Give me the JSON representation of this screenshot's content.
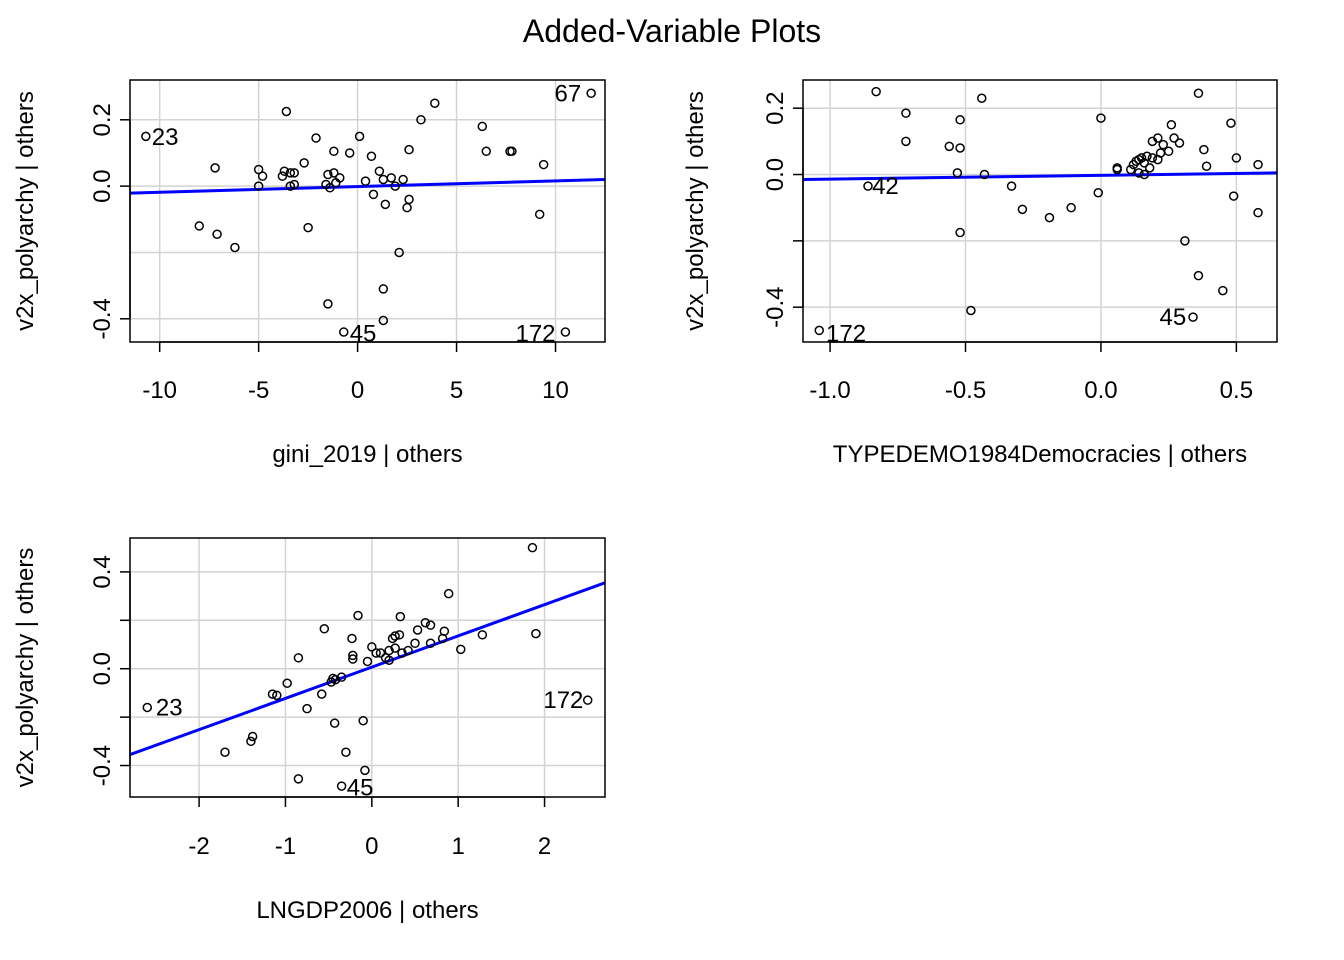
{
  "title": "Added-Variable Plots",
  "colors": {
    "line": "#0000ff",
    "grid": "#d3d3d3",
    "points": "#000000"
  },
  "chart_data": [
    {
      "type": "scatter",
      "xlabel": "gini_2019 | others",
      "ylabel": "v2x_polyarchy  | others",
      "xlim": [
        -11.5,
        12.5
      ],
      "ylim": [
        -0.47,
        0.32
      ],
      "xticks": [
        "-10",
        "-5",
        "0",
        "5",
        "10"
      ],
      "xtick_values": [
        -10,
        -5,
        0,
        5,
        10
      ],
      "yticks": [
        "-0.4",
        "0.0",
        "0.2"
      ],
      "ytick_values": [
        -0.4,
        0.0,
        0.2
      ],
      "xgrid": [
        -10,
        -5,
        0,
        5,
        10
      ],
      "ygrid": [
        -0.4,
        -0.2,
        0.0,
        0.2
      ],
      "fit": {
        "x": [
          -11.5,
          12.5
        ],
        "y": [
          -0.021,
          0.02
        ]
      },
      "labels": [
        {
          "text": "23",
          "x": -10.4,
          "y": 0.148,
          "anchor": "start"
        },
        {
          "text": "67",
          "x": 11.3,
          "y": 0.28,
          "anchor": "end"
        },
        {
          "text": "45",
          "x": -0.4,
          "y": -0.445,
          "anchor": "start"
        },
        {
          "text": "172",
          "x": 10.0,
          "y": -0.445,
          "anchor": "end"
        }
      ],
      "points": [
        [
          -10.7,
          0.15
        ],
        [
          11.8,
          0.28
        ],
        [
          -0.7,
          -0.44
        ],
        [
          10.5,
          -0.44
        ],
        [
          -7.2,
          0.055
        ],
        [
          -8.0,
          -0.12
        ],
        [
          -7.1,
          -0.145
        ],
        [
          -6.2,
          -0.185
        ],
        [
          -5.0,
          0.05
        ],
        [
          -4.8,
          0.03
        ],
        [
          -5.0,
          0.0
        ],
        [
          -3.7,
          0.045
        ],
        [
          -3.6,
          0.225
        ],
        [
          -3.8,
          0.03
        ],
        [
          -3.4,
          0.04
        ],
        [
          -3.2,
          0.04
        ],
        [
          -3.4,
          0.0
        ],
        [
          -3.2,
          0.005
        ],
        [
          -2.7,
          0.07
        ],
        [
          -2.5,
          -0.125
        ],
        [
          -2.1,
          0.145
        ],
        [
          -1.5,
          0.035
        ],
        [
          -1.6,
          0.005
        ],
        [
          -1.4,
          -0.005
        ],
        [
          -1.2,
          0.105
        ],
        [
          -1.2,
          0.04
        ],
        [
          -1.1,
          0.01
        ],
        [
          -0.9,
          0.025
        ],
        [
          -0.4,
          0.1
        ],
        [
          -1.5,
          -0.355
        ],
        [
          0.1,
          0.15
        ],
        [
          0.4,
          0.015
        ],
        [
          0.7,
          0.09
        ],
        [
          0.8,
          -0.025
        ],
        [
          1.1,
          0.045
        ],
        [
          1.3,
          0.02
        ],
        [
          1.4,
          -0.055
        ],
        [
          1.7,
          0.025
        ],
        [
          1.9,
          0.0
        ],
        [
          2.3,
          0.02
        ],
        [
          2.1,
          -0.2
        ],
        [
          1.3,
          -0.31
        ],
        [
          1.3,
          -0.405
        ],
        [
          2.6,
          0.11
        ],
        [
          2.5,
          -0.065
        ],
        [
          2.6,
          -0.04
        ],
        [
          3.2,
          0.2
        ],
        [
          3.9,
          0.25
        ],
        [
          6.3,
          0.18
        ],
        [
          6.5,
          0.105
        ],
        [
          7.7,
          0.105
        ],
        [
          7.8,
          0.105
        ],
        [
          9.2,
          -0.085
        ],
        [
          9.4,
          0.065
        ]
      ]
    },
    {
      "type": "scatter",
      "xlabel": "TYPEDEMO1984Democracies | others",
      "ylabel": "v2x_polyarchy  | others",
      "xlim": [
        -1.1,
        0.65
      ],
      "ylim": [
        -0.505,
        0.285
      ],
      "xticks": [
        "-1.0",
        "-0.5",
        "0.0",
        "0.5"
      ],
      "xtick_values": [
        -1.0,
        -0.5,
        0.0,
        0.5
      ],
      "yticks": [
        "-0.4",
        "0.0",
        "0.2"
      ],
      "ytick_values": [
        -0.4,
        0.0,
        0.2
      ],
      "extra_yticks": [
        -0.2
      ],
      "xgrid": [
        -1.0,
        -0.5,
        0.0,
        0.5
      ],
      "ygrid": [
        -0.4,
        -0.2,
        0.0,
        0.2
      ],
      "fit": {
        "x": [
          -1.1,
          0.65
        ],
        "y": [
          -0.015,
          0.005
        ]
      },
      "labels": [
        {
          "text": "42",
          "x": -0.845,
          "y": -0.035,
          "anchor": "start"
        },
        {
          "text": "172",
          "x": -1.015,
          "y": -0.48,
          "anchor": "start"
        },
        {
          "text": "45",
          "x": 0.315,
          "y": -0.43,
          "anchor": "end"
        }
      ],
      "points": [
        [
          -1.04,
          -0.47
        ],
        [
          -0.86,
          -0.035
        ],
        [
          -0.83,
          0.25
        ],
        [
          -0.72,
          0.185
        ],
        [
          -0.72,
          0.1
        ],
        [
          -0.56,
          0.085
        ],
        [
          -0.52,
          0.08
        ],
        [
          -0.52,
          0.165
        ],
        [
          -0.53,
          0.005
        ],
        [
          -0.52,
          -0.175
        ],
        [
          -0.48,
          -0.41
        ],
        [
          -0.44,
          0.23
        ],
        [
          -0.43,
          0.0
        ],
        [
          -0.33,
          -0.035
        ],
        [
          -0.29,
          -0.105
        ],
        [
          -0.19,
          -0.13
        ],
        [
          -0.11,
          -0.1
        ],
        [
          -0.01,
          -0.055
        ],
        [
          0.0,
          0.17
        ],
        [
          0.06,
          0.02
        ],
        [
          0.06,
          0.015
        ],
        [
          0.11,
          0.015
        ],
        [
          0.12,
          0.03
        ],
        [
          0.13,
          0.04
        ],
        [
          0.14,
          0.005
        ],
        [
          0.14,
          0.045
        ],
        [
          0.15,
          0.05
        ],
        [
          0.16,
          0.0
        ],
        [
          0.16,
          0.035
        ],
        [
          0.17,
          0.055
        ],
        [
          0.18,
          0.02
        ],
        [
          0.19,
          0.05
        ],
        [
          0.19,
          0.1
        ],
        [
          0.21,
          0.045
        ],
        [
          0.21,
          0.11
        ],
        [
          0.22,
          0.065
        ],
        [
          0.23,
          0.09
        ],
        [
          0.25,
          0.07
        ],
        [
          0.26,
          0.15
        ],
        [
          0.27,
          0.11
        ],
        [
          0.29,
          0.095
        ],
        [
          0.31,
          -0.2
        ],
        [
          0.34,
          -0.43
        ],
        [
          0.36,
          0.245
        ],
        [
          0.36,
          -0.305
        ],
        [
          0.38,
          0.075
        ],
        [
          0.39,
          0.025
        ],
        [
          0.45,
          -0.35
        ],
        [
          0.48,
          0.155
        ],
        [
          0.49,
          -0.065
        ],
        [
          0.5,
          0.05
        ],
        [
          0.58,
          0.03
        ],
        [
          0.58,
          -0.115
        ]
      ]
    },
    {
      "type": "scatter",
      "xlabel": "LNGDP2006 | others",
      "ylabel": "v2x_polyarchy  | others",
      "xlim": [
        -2.8,
        2.7
      ],
      "ylim": [
        -0.53,
        0.54
      ],
      "xticks": [
        "-2",
        "-1",
        "0",
        "1",
        "2"
      ],
      "xtick_values": [
        -2,
        -1,
        0,
        1,
        2
      ],
      "yticks": [
        "-0.4",
        "0.0",
        "0.4"
      ],
      "ytick_values": [
        -0.4,
        0.0,
        0.4
      ],
      "extra_yticks": [
        -0.2,
        0.2
      ],
      "xgrid": [
        -2,
        -1,
        0,
        1,
        2
      ],
      "ygrid": [
        -0.4,
        -0.2,
        0.0,
        0.2,
        0.4
      ],
      "fit": {
        "x": [
          -2.8,
          2.7
        ],
        "y": [
          -0.355,
          0.355
        ]
      },
      "labels": [
        {
          "text": "23",
          "x": -2.5,
          "y": -0.16,
          "anchor": "start"
        },
        {
          "text": "172",
          "x": 2.45,
          "y": -0.13,
          "anchor": "end"
        },
        {
          "text": "45",
          "x": -0.29,
          "y": -0.49,
          "anchor": "start"
        }
      ],
      "points": [
        [
          -2.6,
          -0.16
        ],
        [
          2.5,
          -0.13
        ],
        [
          -0.35,
          -0.485
        ],
        [
          -1.7,
          -0.345
        ],
        [
          -1.4,
          -0.3
        ],
        [
          -1.38,
          -0.28
        ],
        [
          -1.15,
          -0.105
        ],
        [
          -1.1,
          -0.11
        ],
        [
          -0.98,
          -0.06
        ],
        [
          -0.85,
          0.045
        ],
        [
          -0.85,
          -0.455
        ],
        [
          -0.75,
          -0.165
        ],
        [
          -0.58,
          -0.105
        ],
        [
          -0.55,
          0.165
        ],
        [
          -0.47,
          -0.055
        ],
        [
          -0.45,
          -0.04
        ],
        [
          -0.42,
          -0.045
        ],
        [
          -0.43,
          -0.225
        ],
        [
          -0.35,
          -0.035
        ],
        [
          -0.3,
          -0.345
        ],
        [
          -0.23,
          0.125
        ],
        [
          -0.22,
          0.055
        ],
        [
          -0.22,
          0.04
        ],
        [
          -0.16,
          0.22
        ],
        [
          -0.1,
          -0.215
        ],
        [
          -0.08,
          -0.42
        ],
        [
          -0.05,
          0.03
        ],
        [
          0.0,
          0.09
        ],
        [
          0.05,
          0.065
        ],
        [
          0.1,
          0.065
        ],
        [
          0.16,
          0.045
        ],
        [
          0.2,
          0.035
        ],
        [
          0.2,
          0.075
        ],
        [
          0.24,
          0.125
        ],
        [
          0.27,
          0.135
        ],
        [
          0.27,
          0.085
        ],
        [
          0.32,
          0.14
        ],
        [
          0.33,
          0.215
        ],
        [
          0.35,
          0.065
        ],
        [
          0.42,
          0.075
        ],
        [
          0.5,
          0.105
        ],
        [
          0.53,
          0.16
        ],
        [
          0.62,
          0.19
        ],
        [
          0.68,
          0.18
        ],
        [
          0.68,
          0.105
        ],
        [
          0.82,
          0.125
        ],
        [
          0.84,
          0.155
        ],
        [
          0.89,
          0.31
        ],
        [
          1.03,
          0.08
        ],
        [
          1.28,
          0.14
        ],
        [
          1.86,
          0.5
        ],
        [
          1.9,
          0.145
        ]
      ]
    }
  ]
}
